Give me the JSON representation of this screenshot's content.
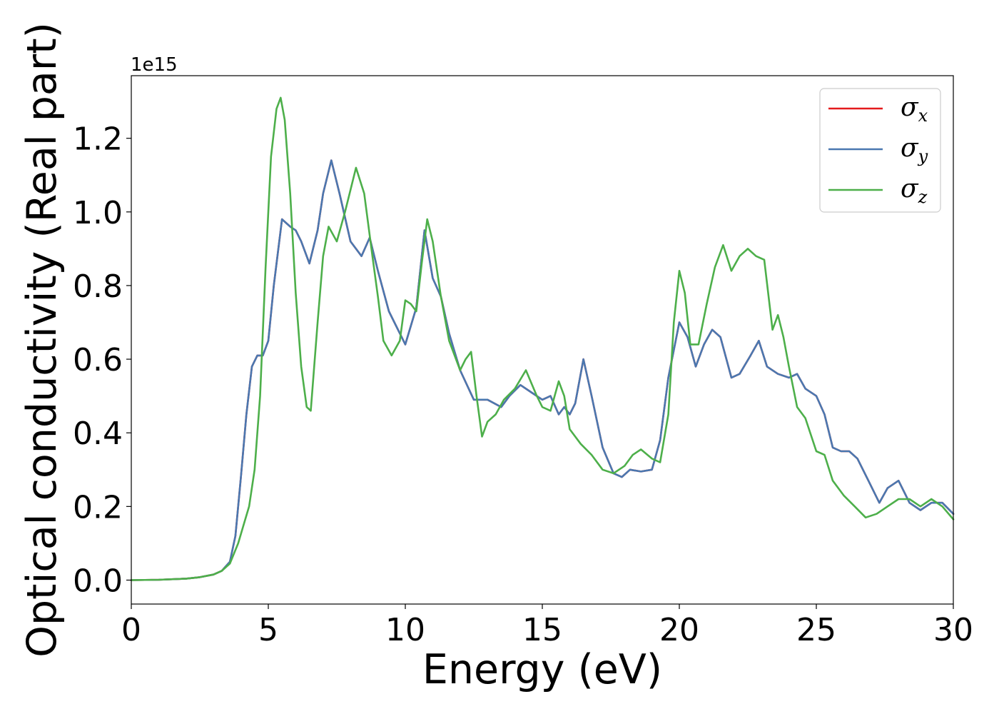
{
  "chart_data": {
    "type": "line",
    "xlabel": "Energy (eV)",
    "ylabel": "Optical conductivity (Real part)",
    "y_offset_label": "1e15",
    "xlim": [
      0,
      30
    ],
    "ylim": [
      -0.065,
      1.37
    ],
    "x_ticks": [
      "0",
      "5",
      "10",
      "15",
      "20",
      "25",
      "30"
    ],
    "x_tick_values": [
      0,
      5,
      10,
      15,
      20,
      25,
      30
    ],
    "y_ticks": [
      "0.0",
      "0.2",
      "0.4",
      "0.6",
      "0.8",
      "1.0",
      "1.2"
    ],
    "y_tick_values": [
      0.0,
      0.2,
      0.4,
      0.6,
      0.8,
      1.0,
      1.2
    ],
    "grid": false,
    "legend_position": "top-right",
    "series": [
      {
        "name": "σx",
        "symbol": "σ",
        "subscript": "x",
        "color": "#e41a1c",
        "x": [
          0,
          1,
          2,
          2.5,
          3,
          3.3,
          3.6,
          3.8,
          4.0,
          4.2,
          4.4,
          4.6,
          4.8,
          5.0,
          5.2,
          5.5,
          5.8,
          6.0,
          6.2,
          6.5,
          6.8,
          7.0,
          7.3,
          7.6,
          8.0,
          8.4,
          8.7,
          9.0,
          9.4,
          10.0,
          10.4,
          10.7,
          11.0,
          11.3,
          11.6,
          12.0,
          12.5,
          13.0,
          13.5,
          13.8,
          14.2,
          14.6,
          15.0,
          15.3,
          15.6,
          15.8,
          16.0,
          16.2,
          16.5,
          16.8,
          17.2,
          17.6,
          17.9,
          18.2,
          18.6,
          19.0,
          19.3,
          19.6,
          20.0,
          20.3,
          20.6,
          20.9,
          21.2,
          21.5,
          21.9,
          22.2,
          22.6,
          22.9,
          23.2,
          23.6,
          24.0,
          24.3,
          24.6,
          25.0,
          25.3,
          25.6,
          25.9,
          26.2,
          26.5,
          26.9,
          27.3,
          27.6,
          28.0,
          28.4,
          28.8,
          29.2,
          29.6,
          30.0
        ],
        "values": [
          0.0,
          0.001,
          0.004,
          0.008,
          0.015,
          0.025,
          0.05,
          0.12,
          0.28,
          0.45,
          0.58,
          0.61,
          0.61,
          0.65,
          0.8,
          0.98,
          0.96,
          0.95,
          0.92,
          0.86,
          0.95,
          1.05,
          1.14,
          1.05,
          0.92,
          0.88,
          0.93,
          0.84,
          0.73,
          0.64,
          0.74,
          0.95,
          0.82,
          0.77,
          0.67,
          0.57,
          0.49,
          0.49,
          0.47,
          0.5,
          0.53,
          0.51,
          0.49,
          0.5,
          0.45,
          0.47,
          0.45,
          0.48,
          0.6,
          0.5,
          0.36,
          0.29,
          0.28,
          0.3,
          0.295,
          0.3,
          0.38,
          0.55,
          0.7,
          0.66,
          0.58,
          0.64,
          0.68,
          0.66,
          0.55,
          0.56,
          0.61,
          0.65,
          0.58,
          0.56,
          0.55,
          0.56,
          0.52,
          0.5,
          0.45,
          0.36,
          0.35,
          0.35,
          0.33,
          0.27,
          0.21,
          0.25,
          0.27,
          0.21,
          0.19,
          0.21,
          0.21,
          0.18
        ]
      },
      {
        "name": "σy",
        "symbol": "σ",
        "subscript": "y",
        "color": "#4a78b0",
        "x": [
          0,
          1,
          2,
          2.5,
          3,
          3.3,
          3.6,
          3.8,
          4.0,
          4.2,
          4.4,
          4.6,
          4.8,
          5.0,
          5.2,
          5.5,
          5.8,
          6.0,
          6.2,
          6.5,
          6.8,
          7.0,
          7.3,
          7.6,
          8.0,
          8.4,
          8.7,
          9.0,
          9.4,
          10.0,
          10.4,
          10.7,
          11.0,
          11.3,
          11.6,
          12.0,
          12.5,
          13.0,
          13.5,
          13.8,
          14.2,
          14.6,
          15.0,
          15.3,
          15.6,
          15.8,
          16.0,
          16.2,
          16.5,
          16.8,
          17.2,
          17.6,
          17.9,
          18.2,
          18.6,
          19.0,
          19.3,
          19.6,
          20.0,
          20.3,
          20.6,
          20.9,
          21.2,
          21.5,
          21.9,
          22.2,
          22.6,
          22.9,
          23.2,
          23.6,
          24.0,
          24.3,
          24.6,
          25.0,
          25.3,
          25.6,
          25.9,
          26.2,
          26.5,
          26.9,
          27.3,
          27.6,
          28.0,
          28.4,
          28.8,
          29.2,
          29.6,
          30.0
        ],
        "values": [
          0.0,
          0.001,
          0.004,
          0.008,
          0.015,
          0.025,
          0.05,
          0.12,
          0.28,
          0.45,
          0.58,
          0.61,
          0.61,
          0.65,
          0.8,
          0.98,
          0.96,
          0.95,
          0.92,
          0.86,
          0.95,
          1.05,
          1.14,
          1.05,
          0.92,
          0.88,
          0.93,
          0.84,
          0.73,
          0.64,
          0.74,
          0.95,
          0.82,
          0.77,
          0.67,
          0.57,
          0.49,
          0.49,
          0.47,
          0.5,
          0.53,
          0.51,
          0.49,
          0.5,
          0.45,
          0.47,
          0.45,
          0.48,
          0.6,
          0.5,
          0.36,
          0.29,
          0.28,
          0.3,
          0.295,
          0.3,
          0.38,
          0.55,
          0.7,
          0.66,
          0.58,
          0.64,
          0.68,
          0.66,
          0.55,
          0.56,
          0.61,
          0.65,
          0.58,
          0.56,
          0.55,
          0.56,
          0.52,
          0.5,
          0.45,
          0.36,
          0.35,
          0.35,
          0.33,
          0.27,
          0.21,
          0.25,
          0.27,
          0.21,
          0.19,
          0.21,
          0.21,
          0.18
        ]
      },
      {
        "name": "σz",
        "symbol": "σ",
        "subscript": "z",
        "color": "#4daf4a",
        "x": [
          0,
          1,
          2,
          2.5,
          3,
          3.3,
          3.6,
          3.9,
          4.1,
          4.3,
          4.5,
          4.7,
          4.9,
          5.1,
          5.3,
          5.45,
          5.6,
          5.8,
          6.0,
          6.2,
          6.4,
          6.55,
          6.8,
          7.0,
          7.2,
          7.5,
          7.8,
          8.0,
          8.2,
          8.5,
          8.8,
          9.0,
          9.2,
          9.5,
          9.8,
          10.0,
          10.2,
          10.4,
          10.6,
          10.8,
          11.0,
          11.3,
          11.6,
          12.0,
          12.2,
          12.4,
          12.6,
          12.8,
          13.0,
          13.3,
          13.6,
          14.0,
          14.4,
          14.8,
          15.0,
          15.3,
          15.6,
          15.8,
          16.0,
          16.4,
          16.8,
          17.2,
          17.6,
          18.0,
          18.3,
          18.6,
          19.0,
          19.3,
          19.6,
          19.8,
          20.0,
          20.2,
          20.4,
          20.7,
          21.0,
          21.3,
          21.6,
          21.9,
          22.2,
          22.5,
          22.8,
          23.1,
          23.4,
          23.6,
          23.8,
          24.0,
          24.3,
          24.6,
          25.0,
          25.3,
          25.6,
          26.0,
          26.4,
          26.8,
          27.2,
          27.6,
          28.0,
          28.4,
          28.8,
          29.2,
          29.6,
          30.0
        ],
        "values": [
          0.0,
          0.001,
          0.004,
          0.008,
          0.015,
          0.025,
          0.045,
          0.1,
          0.15,
          0.2,
          0.3,
          0.5,
          0.85,
          1.15,
          1.28,
          1.31,
          1.25,
          1.05,
          0.78,
          0.58,
          0.47,
          0.46,
          0.7,
          0.88,
          0.96,
          0.92,
          1.0,
          1.06,
          1.12,
          1.05,
          0.88,
          0.77,
          0.65,
          0.61,
          0.65,
          0.76,
          0.75,
          0.73,
          0.86,
          0.98,
          0.92,
          0.77,
          0.65,
          0.57,
          0.6,
          0.62,
          0.5,
          0.39,
          0.43,
          0.45,
          0.49,
          0.52,
          0.57,
          0.5,
          0.47,
          0.46,
          0.54,
          0.5,
          0.41,
          0.37,
          0.34,
          0.3,
          0.29,
          0.31,
          0.34,
          0.355,
          0.33,
          0.32,
          0.45,
          0.7,
          0.84,
          0.78,
          0.64,
          0.64,
          0.75,
          0.85,
          0.91,
          0.84,
          0.88,
          0.9,
          0.88,
          0.87,
          0.68,
          0.72,
          0.66,
          0.58,
          0.47,
          0.44,
          0.35,
          0.34,
          0.27,
          0.23,
          0.2,
          0.17,
          0.18,
          0.2,
          0.22,
          0.22,
          0.2,
          0.22,
          0.2,
          0.165
        ]
      }
    ]
  }
}
